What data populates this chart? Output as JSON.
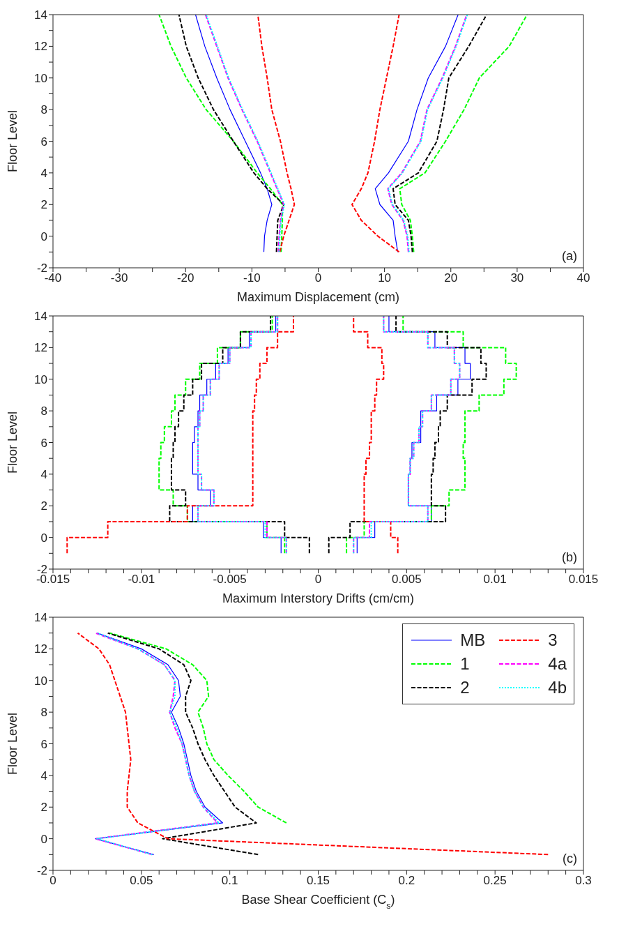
{
  "chart_data": [
    {
      "type": "line",
      "xlabel": "Maximum Displacement (cm)",
      "ylabel": "Floor Level",
      "annotations": [
        "(a)"
      ],
      "legend": false,
      "xlim": [
        -40,
        40
      ],
      "xticks": [
        -40,
        {
          "value": -35,
          "label": null
        },
        -30,
        {
          "value": -25,
          "label": null
        },
        -20,
        {
          "value": -15,
          "label": null
        },
        -10,
        {
          "value": -5,
          "label": null
        },
        0,
        {
          "value": 5,
          "label": null
        },
        10,
        {
          "value": 15,
          "label": null
        },
        20,
        {
          "value": 25,
          "label": null
        },
        30,
        {
          "value": 35,
          "label": null
        },
        40
      ],
      "ylim": [
        -2,
        14
      ],
      "yticks": [
        -2,
        {
          "value": -1,
          "label": null
        },
        0,
        {
          "value": 1,
          "label": null
        },
        2,
        {
          "value": 3,
          "label": null
        },
        4,
        {
          "value": 5,
          "label": null
        },
        6,
        {
          "value": 7,
          "label": null
        },
        8,
        {
          "value": 9,
          "label": null
        },
        10,
        {
          "value": 11,
          "label": null
        },
        12,
        {
          "value": 13,
          "label": null
        },
        14
      ],
      "series": [
        {
          "color": "#0000ff",
          "line_style": "solid",
          "x": [
            -8.2,
            -8.1,
            -7.7,
            -7,
            -7.7,
            -8.7,
            -11,
            -13.3,
            -15.3,
            -17.1,
            -18.5
          ],
          "values": [
            -1,
            0,
            1,
            2,
            3,
            4,
            6,
            8,
            10,
            12,
            14
          ]
        },
        {
          "color": "#00ff00",
          "line_style": "dashed",
          "x": [
            -5.6,
            -5.5,
            -5.4,
            -5.4,
            -7.2,
            -9.2,
            -12.8,
            -16.9,
            -19.9,
            -22.2,
            -24
          ],
          "values": [
            -1,
            0,
            1,
            2,
            3,
            4,
            6,
            8,
            10,
            12,
            14
          ]
        },
        {
          "color": "#000000",
          "line_style": "dashed",
          "x": [
            -6.3,
            -6.2,
            -6.1,
            -5.2,
            -7.7,
            -9.7,
            -12.8,
            -15.8,
            -18.1,
            -19.9,
            -21
          ],
          "values": [
            -1,
            0,
            1,
            2,
            3,
            4,
            6,
            8,
            10,
            12,
            14
          ]
        },
        {
          "color": "#ff0000",
          "line_style": "dashed",
          "x": [
            -5.8,
            -5.2,
            -4.4,
            -3.6,
            -4.1,
            -4.7,
            -5.7,
            -7,
            -7.7,
            -8.5,
            -9.1
          ],
          "values": [
            -1,
            0,
            1,
            2,
            3,
            4,
            6,
            8,
            10,
            12,
            14
          ]
        },
        {
          "color": "#ff00ff",
          "line_style": "dashed",
          "x": [
            -6,
            -5.9,
            -5.7,
            -5.2,
            -6.2,
            -7.2,
            -9.2,
            -11.5,
            -13.6,
            -15.3,
            -17
          ],
          "values": [
            -1,
            0,
            1,
            2,
            3,
            4,
            6,
            8,
            10,
            12,
            14
          ]
        },
        {
          "color": "#00ffff",
          "line_style": "dotted",
          "x": [
            -5.9,
            -5.8,
            -5.6,
            -5.1,
            -6.1,
            -7.1,
            -9.1,
            -11.4,
            -13.5,
            -15.2,
            -16.9
          ],
          "values": [
            -1,
            0,
            1,
            2,
            3,
            4,
            6,
            8,
            10,
            12,
            14
          ]
        },
        {
          "color": "#0000ff",
          "line_style": "solid",
          "x": [
            12,
            11.6,
            11.3,
            9.3,
            8.6,
            10.6,
            13.6,
            14.9,
            16.6,
            19.2,
            21.1
          ],
          "values": [
            -1,
            0,
            1,
            2,
            3,
            4,
            6,
            8,
            10,
            12,
            14
          ]
        },
        {
          "color": "#00ff00",
          "line_style": "dashed",
          "x": [
            14.4,
            14.2,
            13.9,
            12.6,
            12.3,
            16.1,
            19.2,
            22,
            24.3,
            28.8,
            31.5
          ],
          "values": [
            -1,
            0,
            1,
            2,
            3,
            4,
            6,
            8,
            10,
            12,
            14
          ]
        },
        {
          "color": "#000000",
          "line_style": "dashed",
          "x": [
            14.2,
            14,
            13.6,
            11.6,
            11.3,
            15.1,
            17.9,
            18.9,
            19.7,
            22.7,
            25.4
          ],
          "values": [
            -1,
            0,
            1,
            2,
            3,
            4,
            6,
            8,
            10,
            12,
            14
          ]
        },
        {
          "color": "#ff0000",
          "line_style": "dashed",
          "x": [
            12.2,
            9,
            6.5,
            5.1,
            6.5,
            7.5,
            8.5,
            9.3,
            10.3,
            11.3,
            12.2
          ],
          "values": [
            -1,
            0,
            1,
            2,
            3,
            4,
            6,
            8,
            10,
            12,
            14
          ]
        },
        {
          "color": "#ff00ff",
          "line_style": "dashed",
          "x": [
            13.6,
            13.4,
            12.8,
            11.1,
            10.5,
            12.6,
            15.4,
            16.4,
            18.7,
            20.7,
            22.4
          ],
          "values": [
            -1,
            0,
            1,
            2,
            3,
            4,
            6,
            8,
            10,
            12,
            14
          ]
        },
        {
          "color": "#00ffff",
          "line_style": "dotted",
          "x": [
            13.7,
            13.5,
            12.9,
            11.2,
            10.6,
            12.7,
            15.5,
            16.5,
            18.8,
            20.8,
            22.5
          ],
          "values": [
            -1,
            0,
            1,
            2,
            3,
            4,
            6,
            8,
            10,
            12,
            14
          ]
        }
      ]
    },
    {
      "type": "step",
      "xlabel": "Maximum Interstory Drifts (cm/cm)",
      "ylabel": "Floor Level",
      "annotations": [
        "(b)"
      ],
      "legend": false,
      "xlim": [
        -0.015,
        0.015
      ],
      "xticks": [
        -0.015,
        {
          "value": -0.014,
          "label": null
        },
        {
          "value": -0.013,
          "label": null
        },
        {
          "value": -0.012,
          "label": null
        },
        {
          "value": -0.011,
          "label": null
        },
        -0.01,
        {
          "value": -0.009,
          "label": null
        },
        {
          "value": -0.008,
          "label": null
        },
        {
          "value": -0.007,
          "label": null
        },
        {
          "value": -0.006,
          "label": null
        },
        -0.005,
        {
          "value": -0.004,
          "label": null
        },
        {
          "value": -0.003,
          "label": null
        },
        {
          "value": -0.002,
          "label": null
        },
        {
          "value": -0.001,
          "label": null
        },
        0,
        {
          "value": 0.001,
          "label": null
        },
        {
          "value": 0.002,
          "label": null
        },
        {
          "value": 0.003,
          "label": null
        },
        {
          "value": 0.004,
          "label": null
        },
        0.005,
        {
          "value": 0.006,
          "label": null
        },
        {
          "value": 0.007,
          "label": null
        },
        {
          "value": 0.008,
          "label": null
        },
        {
          "value": 0.009,
          "label": null
        },
        0.01,
        {
          "value": 0.011,
          "label": null
        },
        {
          "value": 0.012,
          "label": null
        },
        {
          "value": 0.013,
          "label": null
        },
        {
          "value": 0.014,
          "label": null
        },
        0.015
      ],
      "ylim": [
        -2,
        14
      ],
      "yticks": [
        -2,
        {
          "value": -1,
          "label": null
        },
        0,
        {
          "value": 1,
          "label": null
        },
        2,
        {
          "value": 3,
          "label": null
        },
        4,
        {
          "value": 5,
          "label": null
        },
        6,
        {
          "value": 7,
          "label": null
        },
        8,
        {
          "value": 9,
          "label": null
        },
        10,
        {
          "value": 11,
          "label": null
        },
        12,
        {
          "value": 13,
          "label": null
        },
        14
      ],
      "series": [
        {
          "color": "#0000ff",
          "line_style": "solid",
          "x": [
            -0.0021,
            -0.0031,
            -0.0071,
            -0.0061,
            -0.0068,
            -0.0071,
            -0.0071,
            -0.007,
            -0.0068,
            -0.0067,
            -0.0063,
            -0.0058,
            -0.0051,
            -0.0039,
            -0.0024,
            -0.0024
          ],
          "values": [
            -1,
            0,
            1,
            2,
            3,
            4,
            5,
            6,
            7,
            8,
            9,
            10,
            11,
            12,
            13,
            14
          ]
        },
        {
          "color": "#00ff00",
          "line_style": "dashed",
          "x": [
            -0.0019,
            -0.0029,
            -0.0074,
            -0.0082,
            -0.009,
            -0.009,
            -0.0089,
            -0.0087,
            -0.0083,
            -0.0081,
            -0.0075,
            -0.0067,
            -0.0057,
            -0.0044,
            -0.0026,
            -0.0026
          ],
          "values": [
            -1,
            0,
            1,
            2,
            3,
            4,
            5,
            6,
            7,
            8,
            9,
            10,
            11,
            12,
            13,
            14
          ]
        },
        {
          "color": "#000000",
          "line_style": "dashed",
          "x": [
            -0.0005,
            -0.0019,
            -0.0084,
            -0.0075,
            -0.0083,
            -0.0083,
            -0.0082,
            -0.0081,
            -0.0079,
            -0.0076,
            -0.0071,
            -0.0066,
            -0.0054,
            -0.0044,
            -0.0027,
            -0.0027
          ],
          "values": [
            -1,
            0,
            1,
            2,
            3,
            4,
            5,
            6,
            7,
            8,
            9,
            10,
            11,
            12,
            13,
            14
          ]
        },
        {
          "color": "#ff0000",
          "line_style": "dashed",
          "x": [
            -0.0142,
            -0.0119,
            -0.0074,
            -0.0037,
            -0.0037,
            -0.0037,
            -0.0037,
            -0.0037,
            -0.0037,
            -0.0036,
            -0.0035,
            -0.0033,
            -0.0029,
            -0.0023,
            -0.0014,
            -0.0014
          ],
          "values": [
            -1,
            0,
            1,
            2,
            3,
            4,
            5,
            6,
            7,
            8,
            9,
            10,
            11,
            12,
            13,
            14
          ]
        },
        {
          "color": "#ff00ff",
          "line_style": "dashed",
          "x": [
            -0.0018,
            -0.0029,
            -0.0068,
            -0.0059,
            -0.0066,
            -0.0068,
            -0.0068,
            -0.0068,
            -0.0067,
            -0.0065,
            -0.0061,
            -0.0056,
            -0.005,
            -0.0038,
            -0.0023,
            -0.0023
          ],
          "values": [
            -1,
            0,
            1,
            2,
            3,
            4,
            5,
            6,
            7,
            8,
            9,
            10,
            11,
            12,
            13,
            14
          ]
        },
        {
          "color": "#00ffff",
          "line_style": "dotted",
          "x": [
            -0.0018,
            -0.003,
            -0.0068,
            -0.0059,
            -0.0066,
            -0.0068,
            -0.0068,
            -0.0068,
            -0.0067,
            -0.0065,
            -0.0061,
            -0.0056,
            -0.005,
            -0.0038,
            -0.0023,
            -0.0023
          ],
          "values": [
            -1,
            0,
            1,
            2,
            3,
            4,
            5,
            6,
            7,
            8,
            9,
            10,
            11,
            12,
            13,
            14
          ]
        },
        {
          "color": "#0000ff",
          "line_style": "solid",
          "x": [
            0.0022,
            0.0032,
            0.0064,
            0.0051,
            0.0051,
            0.0052,
            0.0053,
            0.0058,
            0.0058,
            0.0067,
            0.0079,
            0.0086,
            0.0083,
            0.0066,
            0.004,
            0.004
          ],
          "values": [
            -1,
            0,
            1,
            2,
            3,
            4,
            5,
            6,
            7,
            8,
            9,
            10,
            11,
            12,
            13,
            14
          ]
        },
        {
          "color": "#00ff00",
          "line_style": "dashed",
          "x": [
            0.0016,
            0.0026,
            0.0064,
            0.0074,
            0.0083,
            0.0083,
            0.0082,
            0.0083,
            0.0083,
            0.0091,
            0.0105,
            0.0112,
            0.0106,
            0.0082,
            0.0048,
            0.0048
          ],
          "values": [
            -1,
            0,
            1,
            2,
            3,
            4,
            5,
            6,
            7,
            8,
            9,
            10,
            11,
            12,
            13,
            14
          ]
        },
        {
          "color": "#000000",
          "line_style": "dashed",
          "x": [
            0.0006,
            0.0018,
            0.0072,
            0.0064,
            0.0064,
            0.0065,
            0.0066,
            0.0068,
            0.0069,
            0.0073,
            0.0087,
            0.0095,
            0.0092,
            0.0073,
            0.0044,
            0.0044
          ],
          "values": [
            -1,
            0,
            1,
            2,
            3,
            4,
            5,
            6,
            7,
            8,
            9,
            10,
            11,
            12,
            13,
            14
          ]
        },
        {
          "color": "#ff0000",
          "line_style": "dashed",
          "x": [
            0.0045,
            0.0041,
            0.0026,
            0.0026,
            0.0026,
            0.0027,
            0.0029,
            0.003,
            0.003,
            0.0032,
            0.0033,
            0.0037,
            0.0036,
            0.0028,
            0.002,
            0.002
          ],
          "values": [
            -1,
            0,
            1,
            2,
            3,
            4,
            5,
            6,
            7,
            8,
            9,
            10,
            11,
            12,
            13,
            14
          ]
        },
        {
          "color": "#ff00ff",
          "line_style": "dashed",
          "x": [
            0.002,
            0.0029,
            0.0062,
            0.0051,
            0.0051,
            0.0052,
            0.0054,
            0.0057,
            0.0059,
            0.0064,
            0.0075,
            0.008,
            0.0077,
            0.0062,
            0.0037,
            0.0037
          ],
          "values": [
            -1,
            0,
            1,
            2,
            3,
            4,
            5,
            6,
            7,
            8,
            9,
            10,
            11,
            12,
            13,
            14
          ]
        },
        {
          "color": "#00ffff",
          "line_style": "dotted",
          "x": [
            0.002,
            0.003,
            0.0062,
            0.0051,
            0.0051,
            0.0052,
            0.0054,
            0.0057,
            0.0059,
            0.0064,
            0.0075,
            0.008,
            0.0077,
            0.0062,
            0.0037,
            0.0037
          ],
          "values": [
            -1,
            0,
            1,
            2,
            3,
            4,
            5,
            6,
            7,
            8,
            9,
            10,
            11,
            12,
            13,
            14
          ]
        }
      ]
    },
    {
      "type": "line",
      "xlabel": "Base Shear Coefficient (C$_{s}$)",
      "ylabel": "Floor Level",
      "annotations": [
        "(c)"
      ],
      "legend": "top right",
      "xlim": [
        0,
        0.3
      ],
      "xticks": [
        0,
        {
          "value": 0.01,
          "label": null
        },
        {
          "value": 0.02,
          "label": null
        },
        {
          "value": 0.03,
          "label": null
        },
        {
          "value": 0.04,
          "label": null
        },
        0.05,
        {
          "value": 0.06,
          "label": null
        },
        {
          "value": 0.07,
          "label": null
        },
        {
          "value": 0.08,
          "label": null
        },
        {
          "value": 0.09,
          "label": null
        },
        0.1,
        {
          "value": 0.11,
          "label": null
        },
        {
          "value": 0.12,
          "label": null
        },
        {
          "value": 0.13,
          "label": null
        },
        {
          "value": 0.14,
          "label": null
        },
        0.15,
        {
          "value": 0.16,
          "label": null
        },
        {
          "value": 0.17,
          "label": null
        },
        {
          "value": 0.18,
          "label": null
        },
        {
          "value": 0.19,
          "label": null
        },
        0.2,
        {
          "value": 0.21,
          "label": null
        },
        {
          "value": 0.22,
          "label": null
        },
        {
          "value": 0.23,
          "label": null
        },
        {
          "value": 0.24,
          "label": null
        },
        0.25,
        {
          "value": 0.26,
          "label": null
        },
        {
          "value": 0.27,
          "label": null
        },
        {
          "value": 0.28,
          "label": null
        },
        {
          "value": 0.29,
          "label": null
        },
        0.3
      ],
      "ylim": [
        -2,
        14
      ],
      "yticks": [
        -2,
        {
          "value": -1,
          "label": null
        },
        0,
        {
          "value": 1,
          "label": null
        },
        2,
        {
          "value": 3,
          "label": null
        },
        4,
        {
          "value": 5,
          "label": null
        },
        6,
        {
          "value": 7,
          "label": null
        },
        8,
        {
          "value": 9,
          "label": null
        },
        10,
        {
          "value": 11,
          "label": null
        },
        12,
        {
          "value": 13,
          "label": null
        },
        14
      ],
      "series": [
        {
          "name": "MB",
          "color": "#0000ff",
          "line_style": "solid",
          "x": [
            0.057,
            0.024,
            0.096,
            0.086,
            0.081,
            0.078,
            0.076,
            0.074,
            0.071,
            0.067,
            0.072,
            0.071,
            0.065,
            0.05,
            0.025
          ],
          "values": [
            -1,
            0,
            1,
            2,
            3,
            4,
            5,
            6,
            7,
            8,
            9,
            10,
            11,
            12,
            13
          ]
        },
        {
          "name": "1",
          "color": "#00ff00",
          "line_style": "dashed",
          "x": [
            0.132,
            0.116,
            0.108,
            0.099,
            0.091,
            0.087,
            0.085,
            0.082,
            0.088,
            0.087,
            0.079,
            0.064,
            0.032
          ],
          "values": [
            1,
            2,
            3,
            4,
            5,
            6,
            7,
            8,
            9,
            10,
            11,
            12,
            13
          ]
        },
        {
          "name": "2",
          "color": "#000000",
          "line_style": "dashed",
          "x": [
            0.116,
            0.062,
            0.115,
            0.103,
            0.097,
            0.091,
            0.086,
            0.082,
            0.079,
            0.075,
            0.075,
            0.078,
            0.074,
            0.06,
            0.031
          ],
          "values": [
            -1,
            0,
            1,
            2,
            3,
            4,
            5,
            6,
            7,
            8,
            9,
            10,
            11,
            12,
            13
          ]
        },
        {
          "name": "3",
          "color": "#ff0000",
          "line_style": "dashed",
          "x": [
            0.28,
            0.065,
            0.048,
            0.042,
            0.042,
            0.043,
            0.044,
            0.043,
            0.042,
            0.041,
            0.038,
            0.035,
            0.032,
            0.026,
            0.014
          ],
          "values": [
            -1,
            0,
            1,
            2,
            3,
            4,
            5,
            6,
            7,
            8,
            9,
            10,
            11,
            12,
            13
          ]
        },
        {
          "name": "4a",
          "color": "#ff00ff",
          "line_style": "dashed",
          "x": [
            0.056,
            0.024,
            0.093,
            0.085,
            0.08,
            0.077,
            0.075,
            0.073,
            0.069,
            0.066,
            0.068,
            0.069,
            0.063,
            0.048,
            0.024
          ],
          "values": [
            -1,
            0,
            1,
            2,
            3,
            4,
            5,
            6,
            7,
            8,
            9,
            10,
            11,
            12,
            13
          ]
        },
        {
          "name": "4b",
          "color": "#00ffff",
          "line_style": "dotted",
          "x": [
            0.056,
            0.025,
            0.094,
            0.085,
            0.08,
            0.077,
            0.075,
            0.073,
            0.07,
            0.066,
            0.069,
            0.069,
            0.063,
            0.048,
            0.025
          ],
          "values": [
            -1,
            0,
            1,
            2,
            3,
            4,
            5,
            6,
            7,
            8,
            9,
            10,
            11,
            12,
            13
          ]
        }
      ]
    }
  ]
}
